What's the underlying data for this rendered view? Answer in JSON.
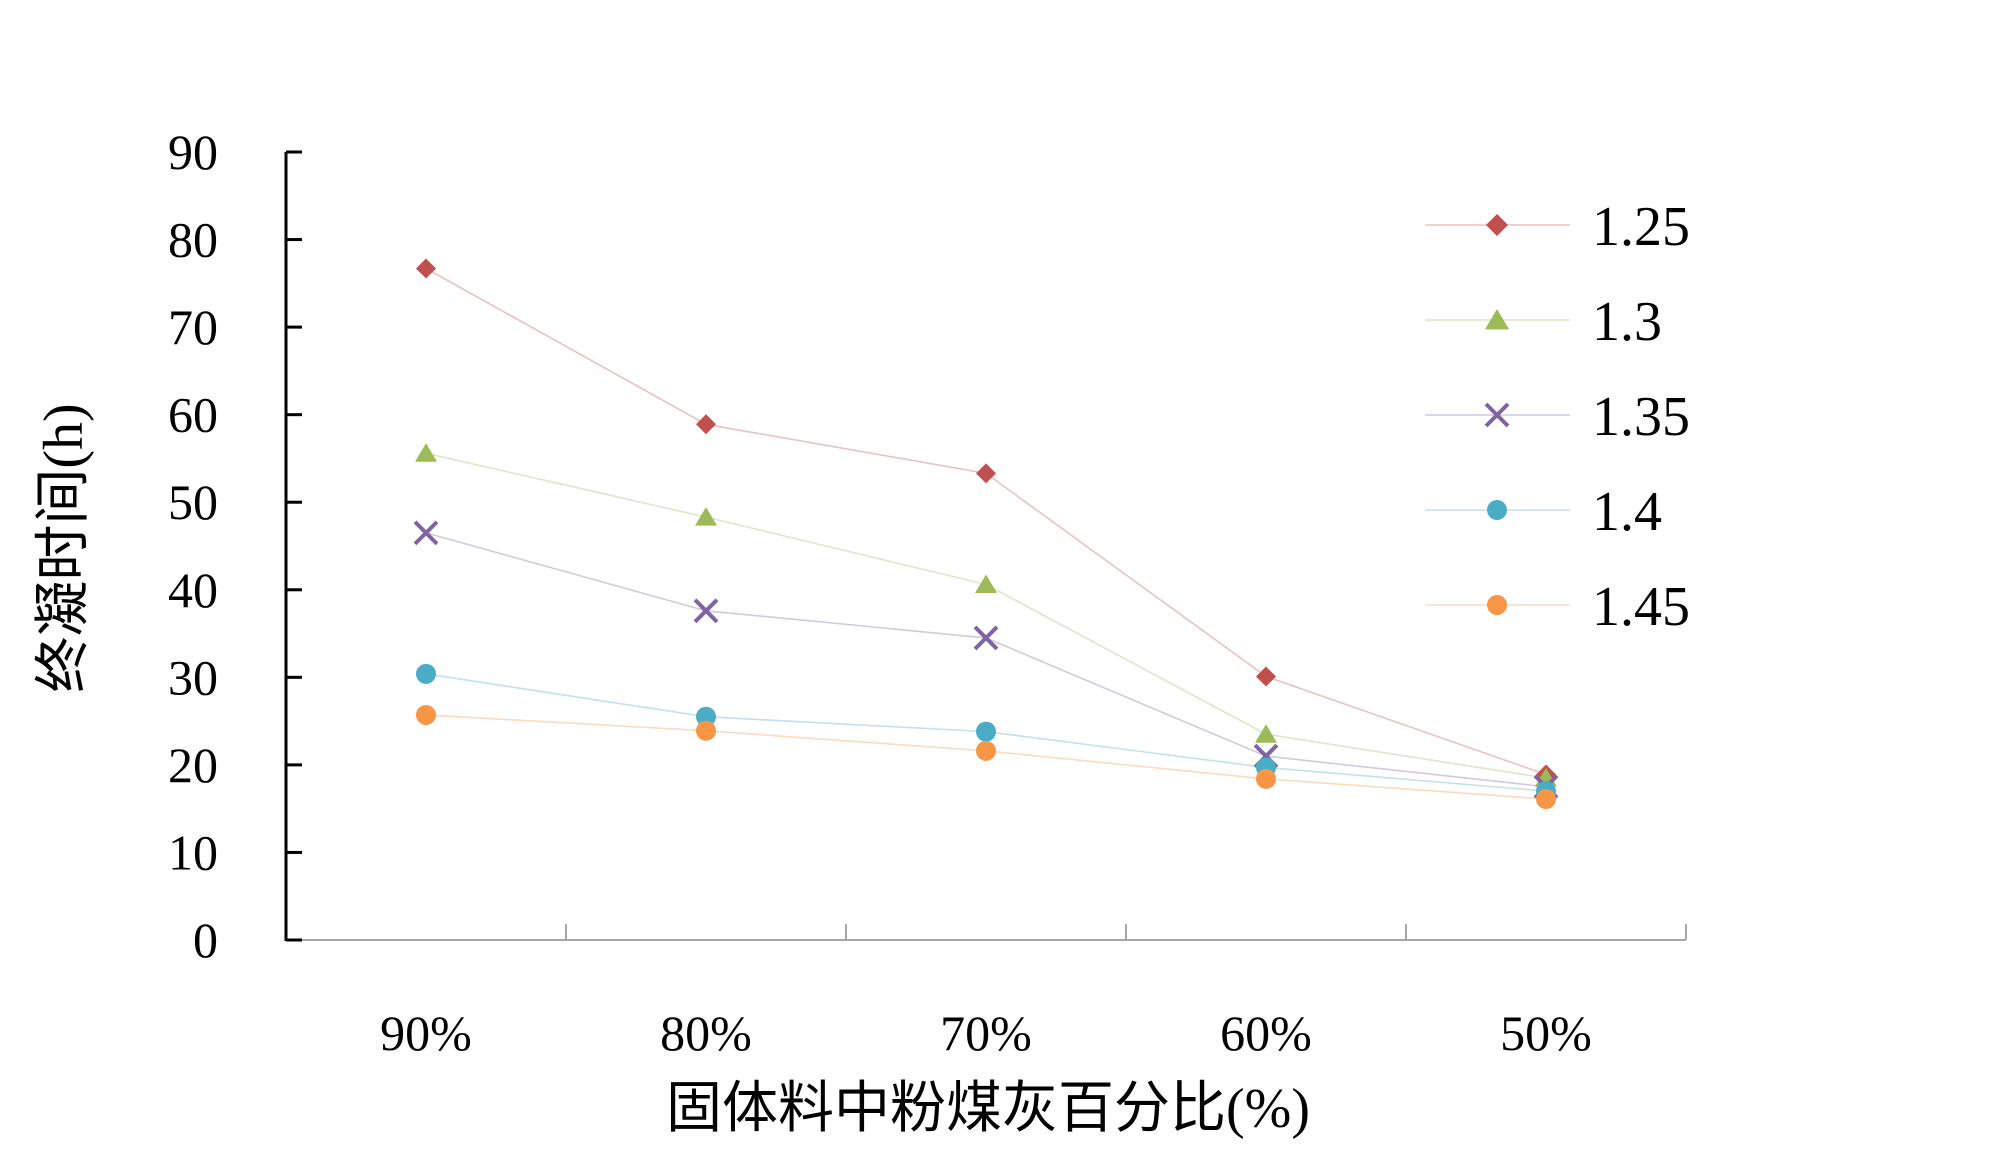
{
  "chart_data": {
    "type": "line",
    "categories": [
      "90%",
      "80%",
      "70%",
      "60%",
      "50%"
    ],
    "xlabel": "固体料中粉煤灰百分比(%)",
    "ylabel": "终凝时间(h)",
    "ylim": [
      0,
      90
    ],
    "yticks": [
      "0",
      "10",
      "20",
      "30",
      "40",
      "50",
      "60",
      "70",
      "80",
      "90"
    ],
    "grid": false,
    "legend_position": "right",
    "series": [
      {
        "name": "1.25",
        "marker": "diamond",
        "color": "#C0504D",
        "values": [
          76.7,
          58.9,
          53.3,
          30.1,
          18.9
        ]
      },
      {
        "name": "1.3",
        "marker": "triangle",
        "color": "#9BBB59",
        "values": [
          55.6,
          48.3,
          40.6,
          23.5,
          18.5
        ]
      },
      {
        "name": "1.35",
        "marker": "x",
        "color": "#8064A2",
        "values": [
          46.5,
          37.6,
          34.5,
          21.0,
          17.5
        ]
      },
      {
        "name": "1.4",
        "marker": "circle",
        "color": "#4BACC6",
        "values": [
          30.4,
          25.5,
          23.8,
          19.7,
          17.0
        ]
      },
      {
        "name": "1.45",
        "marker": "circle",
        "color": "#F79646",
        "values": [
          25.7,
          23.9,
          21.6,
          18.4,
          16.1
        ]
      }
    ]
  }
}
